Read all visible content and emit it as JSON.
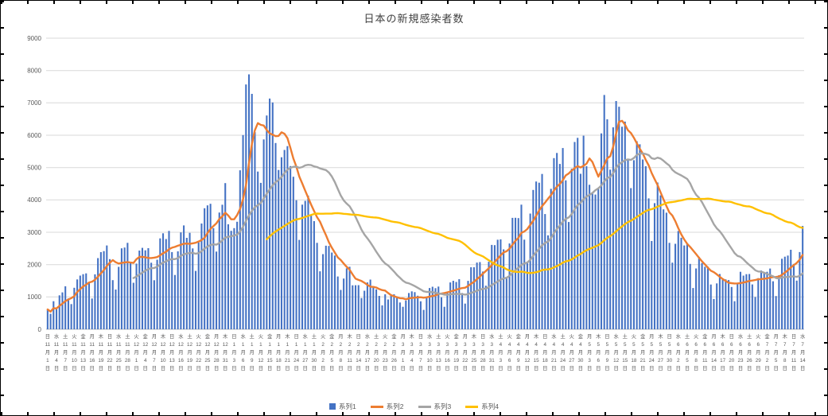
{
  "legend": {
    "items": [
      {
        "label": "系列1",
        "color": "#4472C4",
        "type": "bar"
      },
      {
        "label": "系列2",
        "color": "#ED7D31",
        "type": "line"
      },
      {
        "label": "系列3",
        "color": "#A5A5A5",
        "type": "line"
      },
      {
        "label": "系列4",
        "color": "#FFC000",
        "type": "line"
      }
    ]
  },
  "chart_data": {
    "type": "bar",
    "title": "日本の新規感染者数",
    "ylim": [
      0,
      9000
    ],
    "ytick_step": 1000,
    "grid": true,
    "legend_position": "bottom",
    "x_label_interval": 3,
    "weekday_chars": [
      "日",
      "月",
      "火",
      "水",
      "木",
      "金",
      "土"
    ],
    "month_suffix": "月",
    "day_suffix": "日",
    "months": [
      {
        "month": 11,
        "days": 30
      },
      {
        "month": 12,
        "days": 31
      },
      {
        "month": 1,
        "days": 31
      },
      {
        "month": 2,
        "days": 28
      },
      {
        "month": 3,
        "days": 31
      },
      {
        "month": 4,
        "days": 30
      },
      {
        "month": 5,
        "days": 31
      },
      {
        "month": 6,
        "days": 30
      },
      {
        "month": 7,
        "days": 14
      }
    ],
    "series": [
      {
        "name": "系列1",
        "type": "bar",
        "color": "#4472C4",
        "values": [
          614,
          480,
          867,
          620,
          1049,
          1141,
          1331,
          953,
          780,
          1284,
          1543,
          1660,
          1704,
          1729,
          1441,
          951,
          1699,
          2201,
          2386,
          2418,
          2591,
          2168,
          1520,
          1229,
          1930,
          2503,
          2527,
          2674,
          2058,
          1438,
          2030,
          2434,
          2518,
          2442,
          2508,
          2058,
          1516,
          2152,
          2810,
          2969,
          2790,
          3041,
          2388,
          1680,
          2410,
          2994,
          3211,
          2829,
          2982,
          2501,
          1806,
          2688,
          3271,
          3742,
          3832,
          3881,
          3128,
          2403,
          3610,
          3852,
          4520,
          3246,
          3044,
          3127,
          3325,
          4915,
          6004,
          7570,
          7882,
          7278,
          6097,
          4876,
          4527,
          5870,
          6609,
          7133,
          7014,
          5759,
          4925,
          5320,
          5546,
          5662,
          5045,
          4717,
          3990,
          2764,
          3853,
          3971,
          4131,
          3534,
          3344,
          2673,
          1792,
          2324,
          2585,
          2577,
          2372,
          2279,
          1632,
          1216,
          1570,
          1887,
          1933,
          1361,
          1362,
          1364,
          966,
          1193,
          1448,
          1538,
          1301,
          1234,
          1032,
          739,
          1083,
          922,
          1076,
          1083,
          999,
          829,
          697,
          888,
          1121,
          1173,
          1148,
          1038,
          866,
          599,
          974,
          1277,
          1316,
          1271,
          1320,
          988,
          695,
          1133,
          1448,
          1500,
          1463,
          1549,
          1121,
          795,
          1498,
          1918,
          1917,
          2064,
          2077,
          1785,
          1348,
          2087,
          2610,
          2601,
          2770,
          2782,
          2472,
          1571,
          2654,
          3444,
          3448,
          3437,
          3854,
          2772,
          2088,
          3578,
          4307,
          4570,
          4532,
          4802,
          3563,
          2905,
          4342,
          5291,
          5452,
          5113,
          5605,
          4605,
          3318,
          4965,
          5792,
          5918,
          4808,
          5986,
          5044,
          4469,
          4199,
          4166,
          4368,
          6057,
          7244,
          6493,
          4936,
          6243,
          7057,
          6880,
          6263,
          6421,
          5261,
          4364,
          5229,
          5814,
          5719,
          5249,
          5040,
          4047,
          2729,
          3901,
          4536,
          4142,
          3708,
          3604,
          2674,
          2060,
          2644,
          3040,
          2830,
          2591,
          2650,
          2022,
          1276,
          1880,
          2237,
          2048,
          1932,
          1935,
          1385,
          938,
          1418,
          1709,
          1555,
          1544,
          1521,
          1307,
          868,
          1435,
          1779,
          1661,
          1705,
          1710,
          1387,
          998,
          1581,
          1817,
          1754,
          1777,
          1879,
          1485,
          1029,
          1672,
          2180,
          2246,
          2279,
          2458,
          2021,
          1506,
          2387,
          3194
        ]
      },
      {
        "name": "系列2",
        "type": "line",
        "color": "#ED7D31",
        "derived": "moving_average",
        "window": 7,
        "start_at_full_window": false
      },
      {
        "name": "系列3",
        "type": "line",
        "color": "#A5A5A5",
        "derived": "moving_average",
        "window": 30,
        "start_at_full_window": true
      },
      {
        "name": "系列4",
        "type": "line",
        "color": "#FFC000",
        "derived": "moving_average",
        "window": 75,
        "start_at_full_window": true
      }
    ]
  }
}
